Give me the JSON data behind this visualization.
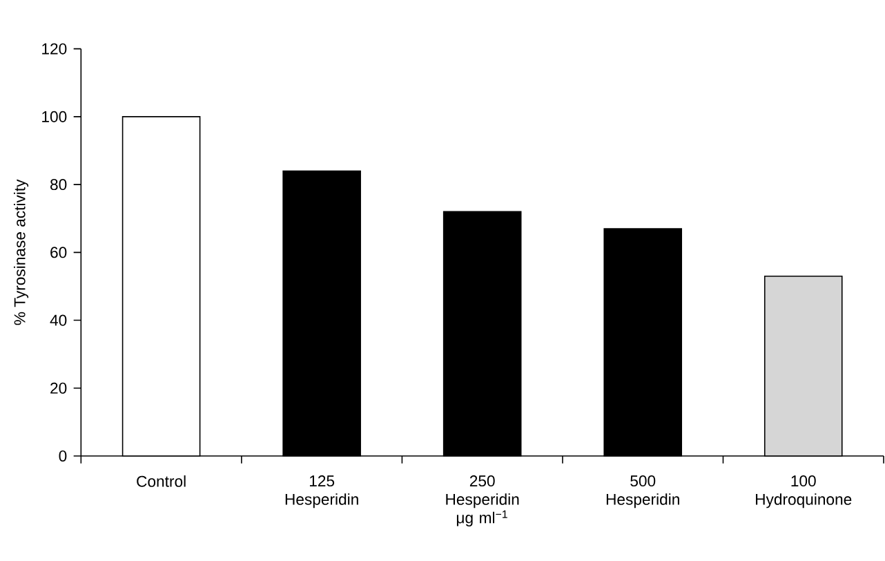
{
  "chart_data": {
    "type": "bar",
    "ylabel": "% Tyrosinase activity",
    "categories": [
      "Control",
      "125 Hesperidin",
      "250 Hesperidin μg ml$^{−1}$",
      "500 Hesperidin",
      "100 Hydroquinone"
    ],
    "values": [
      100,
      84,
      72,
      67,
      53
    ],
    "colors": [
      "#ffffff",
      "#000000",
      "#000000",
      "#000000",
      "#d6d6d6"
    ],
    "ylim": [
      0,
      120
    ],
    "yticks": [
      0,
      20,
      40,
      60,
      80,
      100,
      120
    ],
    "grid": false
  }
}
